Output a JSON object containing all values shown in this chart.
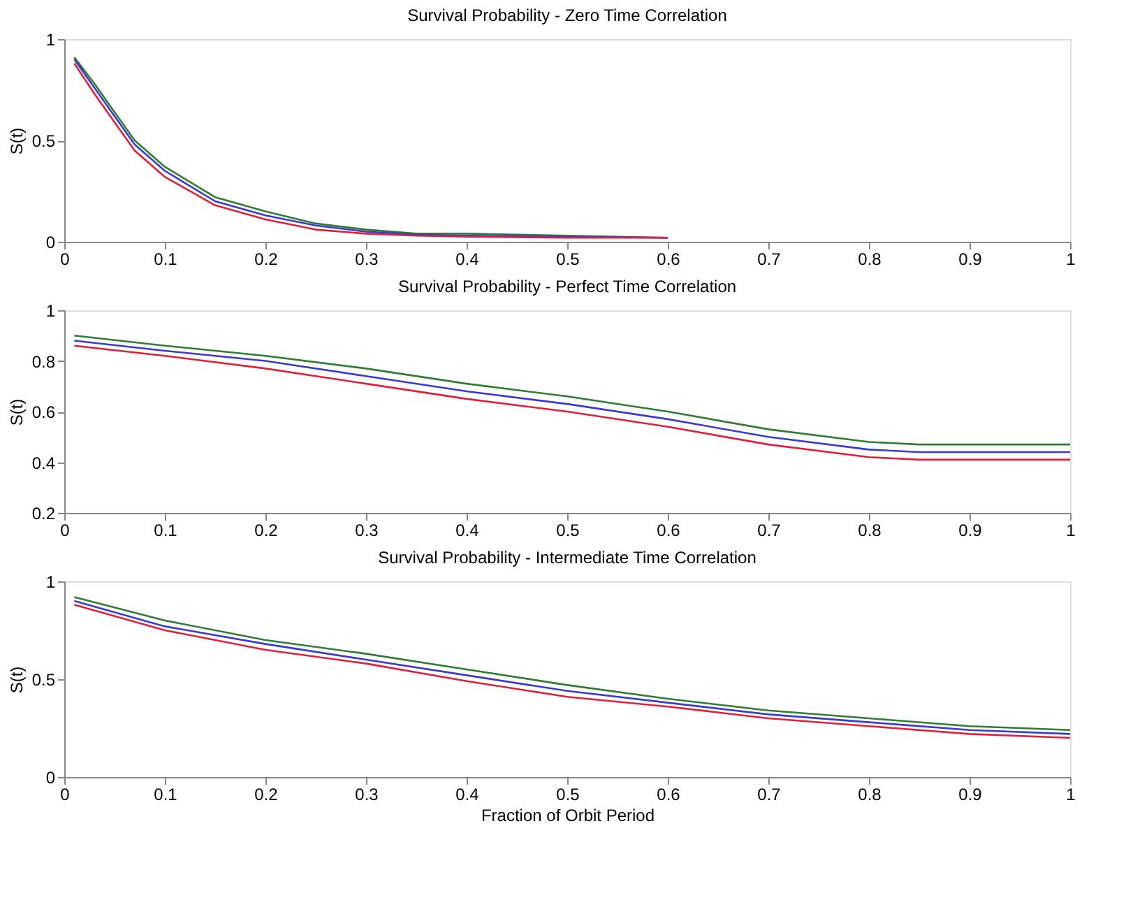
{
  "chart_data": [
    {
      "type": "line",
      "title": "Survival Probability - Zero Time Correlation",
      "ylabel": "S(t)",
      "xlim": [
        0,
        1
      ],
      "ylim": [
        0,
        1
      ],
      "xticks": [
        0,
        0.1,
        0.2,
        0.3,
        0.4,
        0.5,
        0.6,
        0.7,
        0.8,
        0.9,
        1
      ],
      "yticks": [
        0,
        0.5,
        1
      ],
      "grid": false,
      "legend": false,
      "x": [
        0.01,
        0.03,
        0.05,
        0.07,
        0.1,
        0.15,
        0.2,
        0.25,
        0.3,
        0.35,
        0.4,
        0.5,
        0.6
      ],
      "series": [
        {
          "color": "#2e7d32",
          "values": [
            0.91,
            0.78,
            0.64,
            0.5,
            0.37,
            0.22,
            0.15,
            0.09,
            0.06,
            0.04,
            0.04,
            0.03,
            0.02
          ]
        },
        {
          "color": "#3a3ad0",
          "values": [
            0.9,
            0.76,
            0.62,
            0.48,
            0.35,
            0.2,
            0.13,
            0.08,
            0.05,
            0.035,
            0.03,
            0.025,
            0.02
          ]
        },
        {
          "color": "#e0203a",
          "values": [
            0.88,
            0.73,
            0.59,
            0.45,
            0.32,
            0.18,
            0.11,
            0.06,
            0.04,
            0.03,
            0.025,
            0.02,
            0.02
          ]
        }
      ]
    },
    {
      "type": "line",
      "title": "Survival Probability - Perfect Time Correlation",
      "ylabel": "S(t)",
      "xlim": [
        0,
        1
      ],
      "ylim": [
        0.2,
        1
      ],
      "xticks": [
        0,
        0.1,
        0.2,
        0.3,
        0.4,
        0.5,
        0.6,
        0.7,
        0.8,
        0.9,
        1
      ],
      "yticks": [
        0.2,
        0.4,
        0.6,
        0.8,
        1
      ],
      "grid": false,
      "legend": false,
      "x": [
        0.01,
        0.1,
        0.2,
        0.3,
        0.4,
        0.5,
        0.6,
        0.7,
        0.8,
        0.85,
        0.9,
        1.0
      ],
      "series": [
        {
          "color": "#2e7d32",
          "values": [
            0.9,
            0.86,
            0.82,
            0.77,
            0.71,
            0.66,
            0.6,
            0.53,
            0.48,
            0.47,
            0.47,
            0.47
          ]
        },
        {
          "color": "#3a3ad0",
          "values": [
            0.88,
            0.84,
            0.8,
            0.74,
            0.68,
            0.63,
            0.57,
            0.5,
            0.45,
            0.44,
            0.44,
            0.44
          ]
        },
        {
          "color": "#e0203a",
          "values": [
            0.86,
            0.82,
            0.77,
            0.71,
            0.65,
            0.6,
            0.54,
            0.47,
            0.42,
            0.41,
            0.41,
            0.41
          ]
        }
      ]
    },
    {
      "type": "line",
      "title": "Survival Probability - Intermediate Time Correlation",
      "xlabel": "Fraction of Orbit Period",
      "ylabel": "S(t)",
      "xlim": [
        0,
        1
      ],
      "ylim": [
        0,
        1
      ],
      "xticks": [
        0,
        0.1,
        0.2,
        0.3,
        0.4,
        0.5,
        0.6,
        0.7,
        0.8,
        0.9,
        1
      ],
      "yticks": [
        0,
        0.5,
        1
      ],
      "grid": false,
      "legend": false,
      "x": [
        0.01,
        0.1,
        0.2,
        0.3,
        0.4,
        0.5,
        0.6,
        0.7,
        0.8,
        0.9,
        1.0
      ],
      "series": [
        {
          "color": "#2e7d32",
          "values": [
            0.92,
            0.8,
            0.7,
            0.63,
            0.55,
            0.47,
            0.4,
            0.34,
            0.3,
            0.26,
            0.24
          ]
        },
        {
          "color": "#3a3ad0",
          "values": [
            0.9,
            0.77,
            0.68,
            0.6,
            0.52,
            0.44,
            0.38,
            0.32,
            0.28,
            0.24,
            0.22
          ]
        },
        {
          "color": "#e0203a",
          "values": [
            0.88,
            0.75,
            0.65,
            0.58,
            0.49,
            0.41,
            0.36,
            0.3,
            0.26,
            0.22,
            0.2
          ]
        }
      ]
    }
  ]
}
